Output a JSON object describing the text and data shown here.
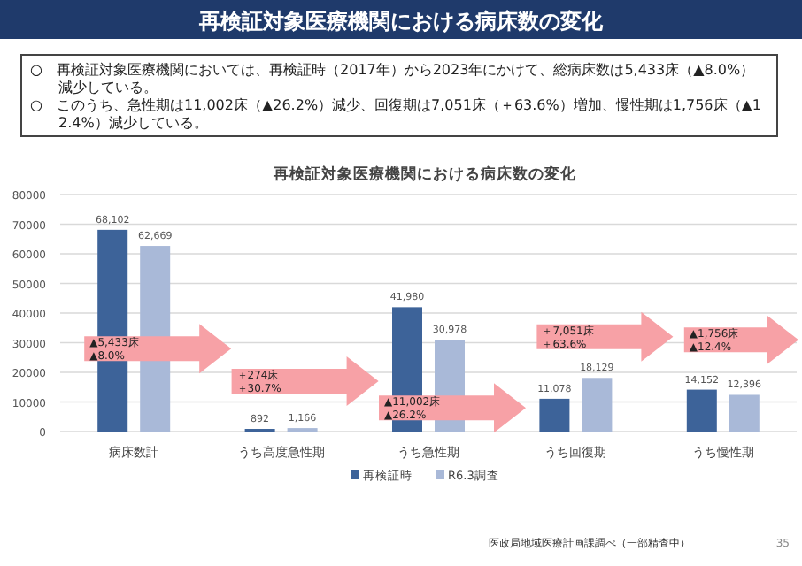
{
  "chart_data": {
    "type": "bar",
    "title": "再検証対象医療機関における病床数の変化",
    "subtitle": "再検証対象医療機関における病床数の変化",
    "categories": [
      "病床数計",
      "うち高度急性期",
      "うち急性期",
      "うち回復期",
      "うち慢性期"
    ],
    "series": [
      {
        "name": "再検証時",
        "color": "#3d6399",
        "values": [
          68102,
          892,
          41980,
          11078,
          14152
        ],
        "value_labels": [
          "68,102",
          "892",
          "41,980",
          "11,078",
          "14,152"
        ]
      },
      {
        "name": "R6.3調査",
        "color": "#a9b9d8",
        "values": [
          62669,
          1166,
          30978,
          18129,
          12396
        ],
        "value_labels": [
          "62,669",
          "1,166",
          "30,978",
          "18,129",
          "12,396"
        ]
      }
    ],
    "ylim": [
      0,
      80000
    ],
    "yticks": [
      0,
      10000,
      20000,
      30000,
      40000,
      50000,
      60000,
      70000,
      80000
    ],
    "grid": "y",
    "legend": "bottom",
    "annotations": [
      "○　再検証対象医療機関においては、再検証時（2017年）から2023年にかけて、総病床数は5,433床（▲8.0%）減少している。",
      "○　このうち、急性期は11,002床（▲26.2%）減少、回復期は7,051床（＋63.6%）増加、慢性期は1,756床（▲12.4%）減少している。",
      "▲5,433床",
      "▲8.0%",
      "＋274床",
      "＋30.7%",
      "▲11,002床",
      "▲26.2%",
      "＋7,051床",
      "＋63.6%",
      "▲1,756床",
      "▲12.4%",
      "医政局地域医療計画課調べ（一部精査中）",
      "35"
    ]
  }
}
